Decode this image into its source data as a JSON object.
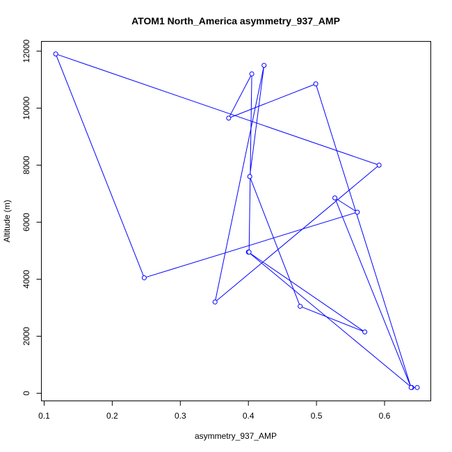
{
  "chart_data": {
    "type": "line",
    "title": "ATOM1 North_America asymmetry_937_AMP",
    "xlabel": "asymmetry_937_AMP",
    "ylabel": "Altitude (m)",
    "xlim": [
      0.1,
      0.65
    ],
    "ylim": [
      0,
      12000
    ],
    "xticks": [
      0.1,
      0.2,
      0.3,
      0.4,
      0.5,
      0.6
    ],
    "yticks": [
      0,
      2000,
      4000,
      6000,
      8000,
      10000,
      12000
    ],
    "xtick_labels": [
      "0.1",
      "0.2",
      "0.3",
      "0.4",
      "0.5",
      "0.6"
    ],
    "ytick_labels": [
      "0",
      "2000",
      "4000",
      "6000",
      "8000",
      "10000",
      "12000"
    ],
    "grid": false,
    "legend": "none",
    "colors": {
      "series": "#0000ff",
      "axes": "#000000",
      "background": "#ffffff"
    },
    "series": [
      {
        "x": [
          0.648,
          0.64,
          0.4,
          0.571,
          0.476,
          0.402,
          0.423,
          0.351,
          0.592,
          0.117,
          0.247,
          0.56,
          0.527,
          0.639,
          0.499,
          0.371,
          0.405,
          0.401
        ],
        "y": [
          200,
          200,
          4950,
          2150,
          3050,
          7600,
          11500,
          3200,
          8000,
          11900,
          4050,
          6350,
          6850,
          200,
          10850,
          9650,
          11200,
          4950
        ]
      }
    ]
  }
}
